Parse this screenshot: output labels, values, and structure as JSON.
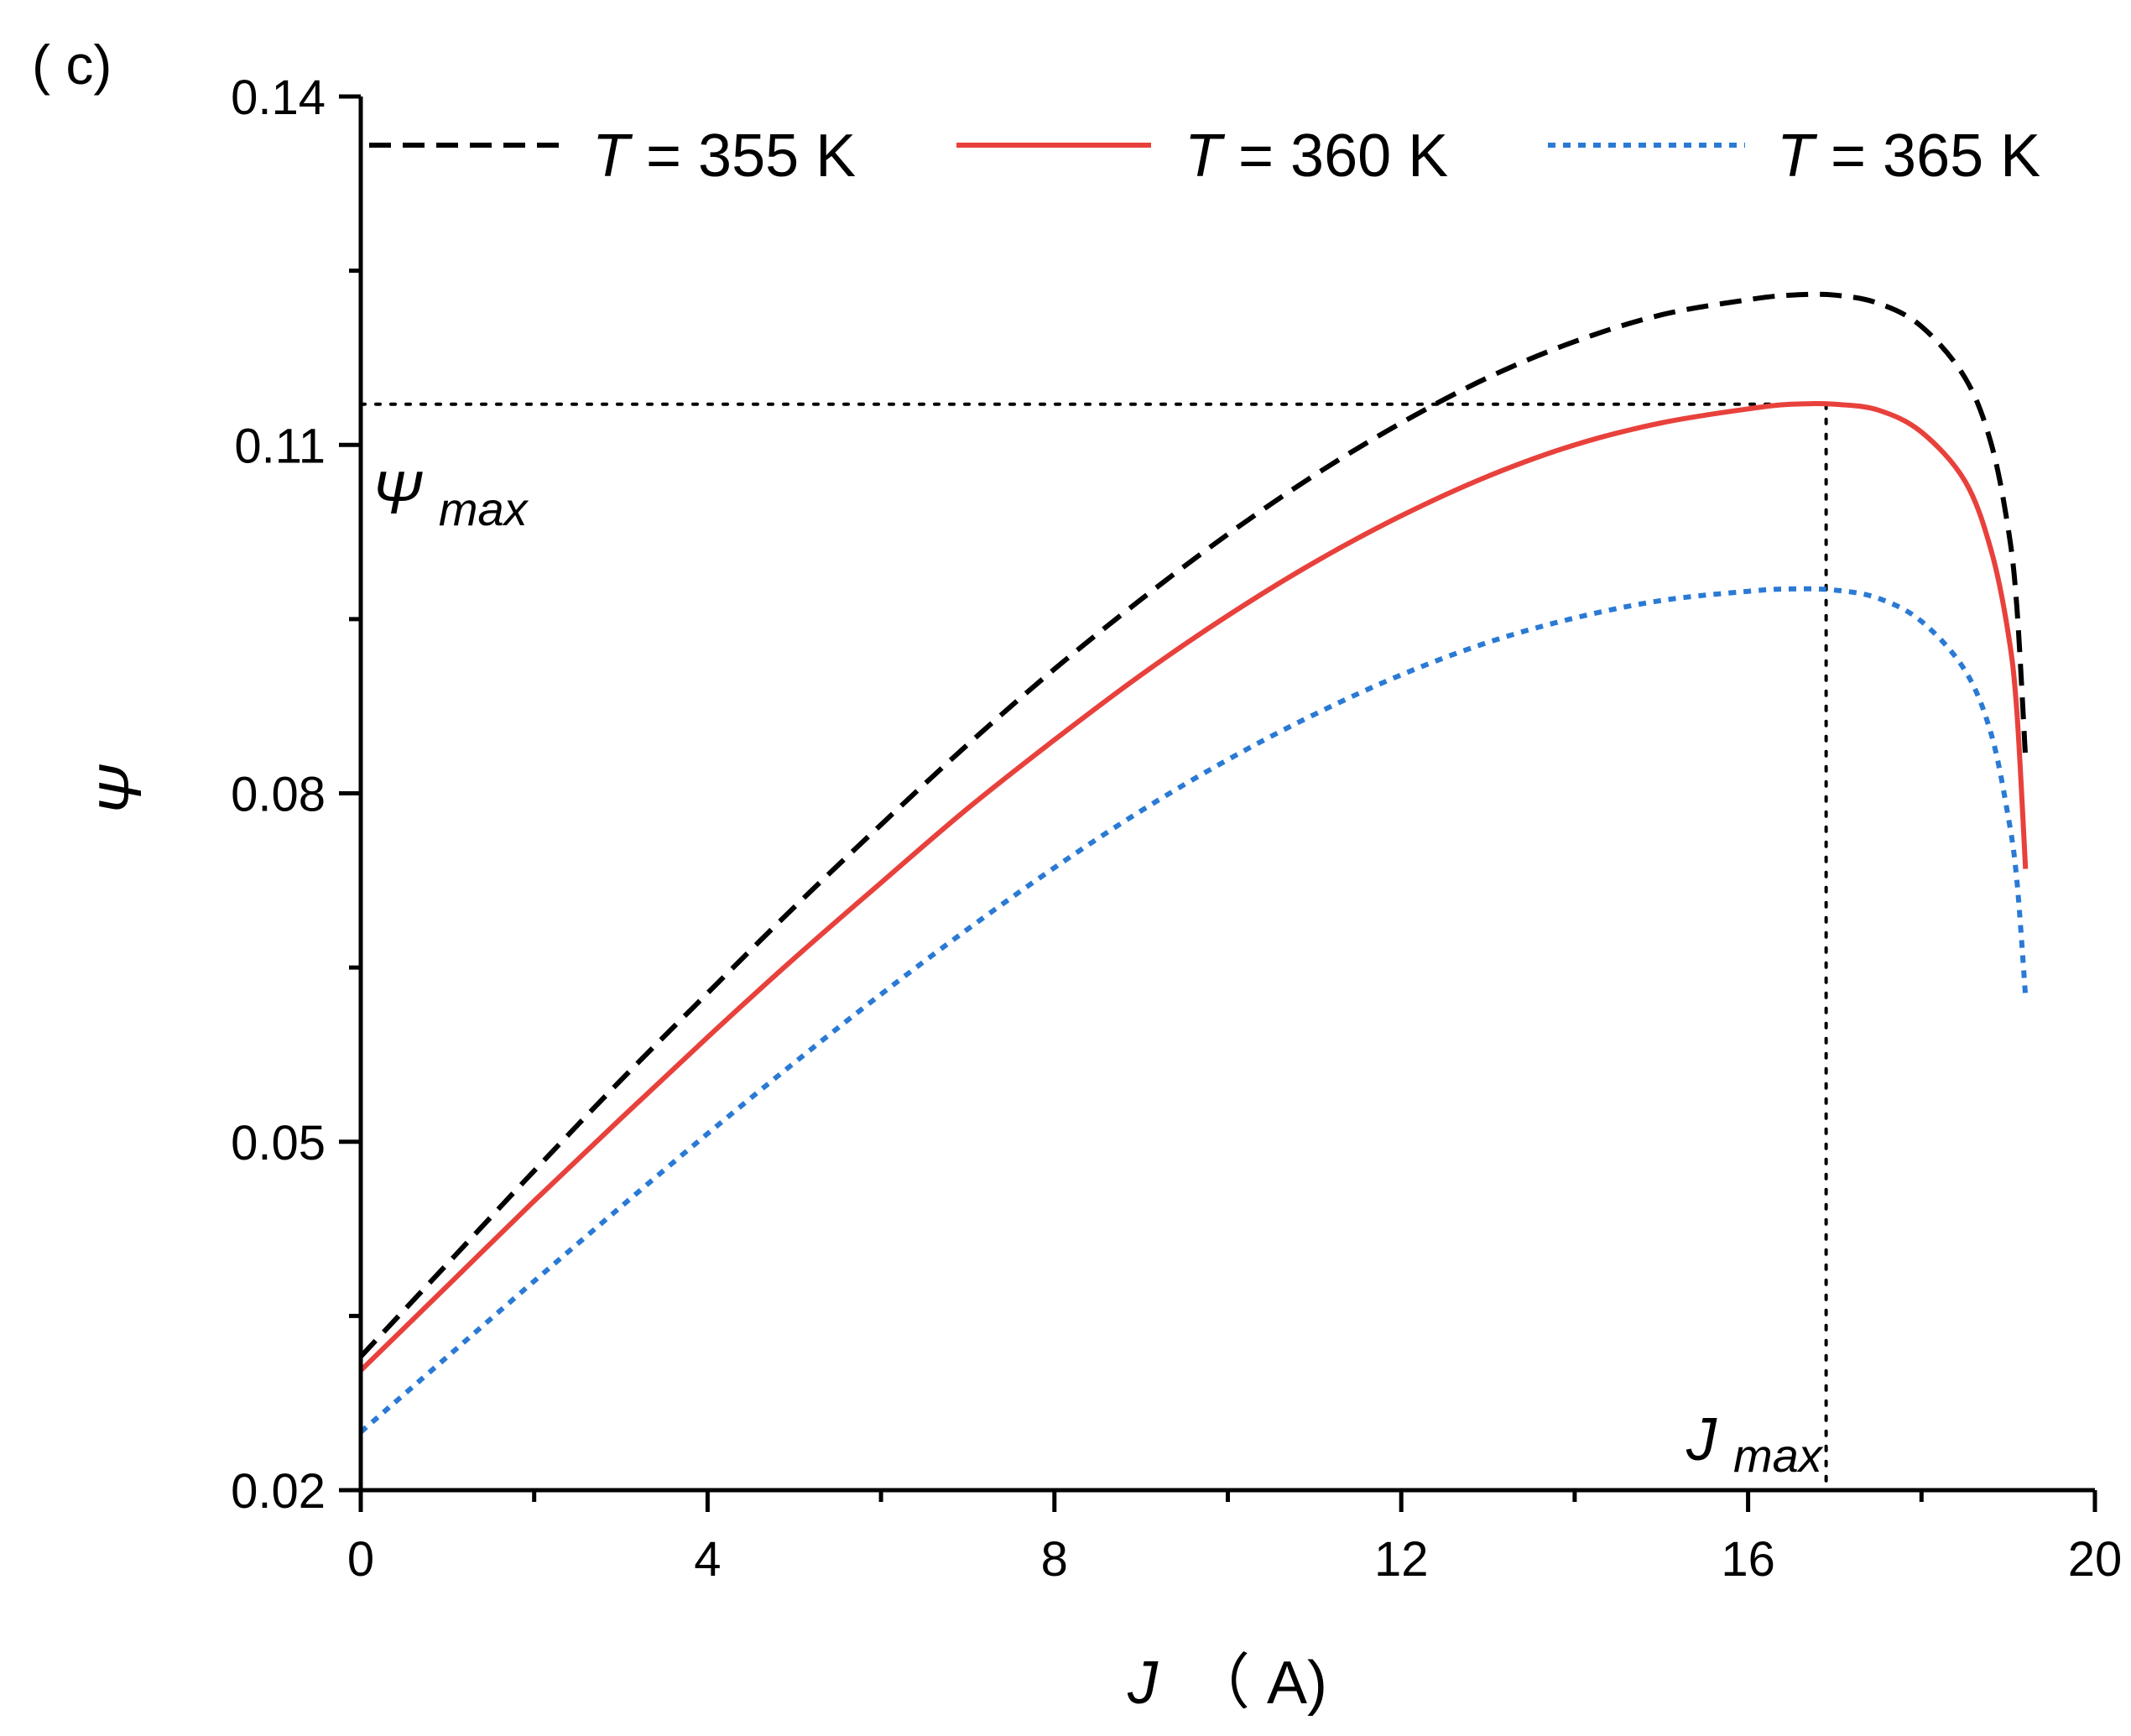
{
  "panel_label": "( c)",
  "chart_data": {
    "type": "line",
    "title": "",
    "xlabel": {
      "symbol": "J",
      "unit": "（ A)"
    },
    "ylabel": "Ψ",
    "xlim": [
      0,
      20
    ],
    "ylim": [
      0.02,
      0.14
    ],
    "x_ticks": [
      0,
      4,
      8,
      12,
      16,
      20
    ],
    "x_tick_labels": [
      "0",
      "4",
      "8",
      "12",
      "16",
      "20"
    ],
    "y_ticks": [
      0.02,
      0.05,
      0.08,
      0.11,
      0.14
    ],
    "y_tick_labels": [
      "0.02",
      "0.05",
      "0.08",
      "0.11",
      "0.14"
    ],
    "legend_position": "top",
    "series": [
      {
        "name": "T = 355 K",
        "legend_symbol": "T",
        "legend_rest": "= 355 K",
        "color": "#000000",
        "style": "dashed",
        "x": [
          0,
          1,
          2,
          3,
          4,
          5,
          6,
          7,
          8,
          9,
          10,
          11,
          12,
          13,
          14,
          15,
          16,
          16.5,
          17,
          17.5,
          18,
          18.5,
          18.8,
          19,
          19.1,
          19.2
        ],
        "y": [
          0.0315,
          0.0395,
          0.0475,
          0.0553,
          0.0628,
          0.0702,
          0.0773,
          0.0842,
          0.0907,
          0.0967,
          0.1023,
          0.1074,
          0.1119,
          0.1158,
          0.1189,
          0.1212,
          0.1225,
          0.1229,
          0.1229,
          0.1222,
          0.1202,
          0.1158,
          0.1102,
          0.1028,
          0.096,
          0.083
        ]
      },
      {
        "name": "T = 360 K",
        "legend_symbol": "T",
        "legend_rest": "= 360 K",
        "color": "#e8413c",
        "style": "solid",
        "x": [
          0,
          1,
          2,
          3,
          4,
          5,
          6,
          7,
          8,
          9,
          10,
          11,
          12,
          13,
          14,
          15,
          16,
          16.5,
          17,
          17.5,
          18,
          18.5,
          18.8,
          19,
          19.1,
          19.2
        ],
        "y": [
          0.0303,
          0.0376,
          0.0449,
          0.052,
          0.059,
          0.0658,
          0.0723,
          0.0787,
          0.0846,
          0.0902,
          0.0953,
          0.0999,
          0.1039,
          0.1073,
          0.11,
          0.1119,
          0.1131,
          0.1135,
          0.1135,
          0.113,
          0.1111,
          0.1069,
          0.101,
          0.0938,
          0.087,
          0.0735
        ]
      },
      {
        "name": "T = 365 K",
        "legend_symbol": "T",
        "legend_rest": "= 365 K",
        "color": "#2a7ad5",
        "style": "dotted",
        "x": [
          0,
          1,
          2,
          3,
          4,
          5,
          6,
          7,
          8,
          9,
          10,
          11,
          12,
          13,
          14,
          15,
          16,
          16.5,
          17,
          17.5,
          18,
          18.5,
          18.8,
          19,
          19.1,
          19.2
        ],
        "y": [
          0.025,
          0.0315,
          0.038,
          0.0444,
          0.0507,
          0.0568,
          0.0627,
          0.0683,
          0.0736,
          0.0785,
          0.0829,
          0.0868,
          0.0902,
          0.093,
          0.0951,
          0.0966,
          0.0974,
          0.0976,
          0.0975,
          0.0968,
          0.0948,
          0.0906,
          0.0852,
          0.078,
          0.0725,
          0.0625
        ]
      }
    ],
    "annotations": {
      "psi_max": {
        "symbol": "Ψ",
        "subscript": "max",
        "value": 0.1135
      },
      "j_max": {
        "symbol": "J",
        "subscript": "max",
        "value": 16.9
      }
    }
  }
}
